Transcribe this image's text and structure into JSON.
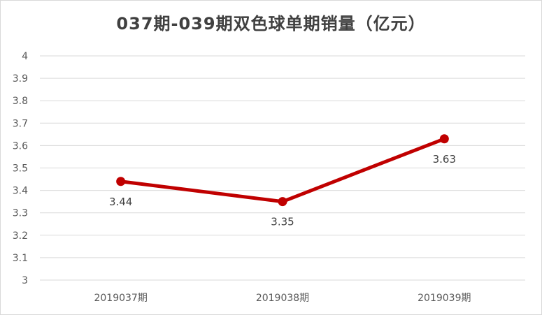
{
  "chart_data": {
    "type": "line",
    "title": "037期-039期双色球单期销量（亿元）",
    "categories": [
      "2019037期",
      "2019038期",
      "2019039期"
    ],
    "series": [
      {
        "values": [
          3.44,
          3.35,
          3.63
        ],
        "color": "#c00000"
      }
    ],
    "ylim": [
      3,
      4
    ],
    "yticks": [
      "3",
      "3.1",
      "3.2",
      "3.3",
      "3.4",
      "3.5",
      "3.6",
      "3.7",
      "3.8",
      "3.9",
      "4"
    ],
    "data_labels": [
      "3.44",
      "3.35",
      "3.63"
    ],
    "grid": true,
    "legend": "none"
  }
}
